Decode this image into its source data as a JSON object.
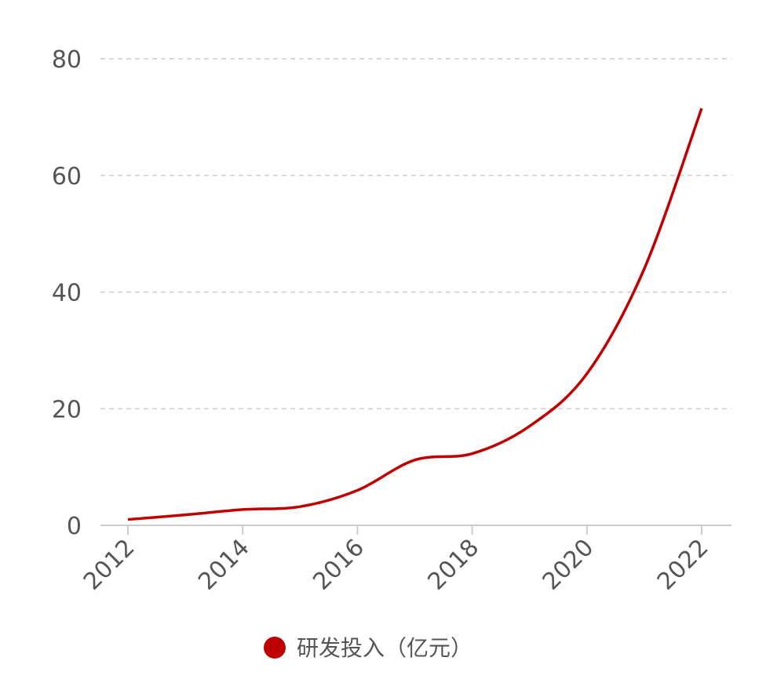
{
  "chart_data": {
    "type": "line",
    "x": [
      2012,
      2013,
      2014,
      2015,
      2016,
      2017,
      2018,
      2019,
      2020,
      2021,
      2022
    ],
    "series": [
      {
        "name": "研发投入（亿元）",
        "color": "#c00000",
        "values": [
          1.0,
          1.8,
          2.7,
          3.2,
          6.0,
          11.2,
          12.3,
          17.0,
          26.0,
          44.0,
          71.5
        ]
      }
    ],
    "x_ticks": [
      "2012",
      "2014",
      "2016",
      "2018",
      "2020",
      "2022"
    ],
    "y_ticks": [
      "0",
      "20",
      "40",
      "60",
      "80"
    ],
    "ylim": [
      0,
      80
    ],
    "xlim": [
      2012,
      2022
    ],
    "grid": "horizontal-dashed",
    "legend_position": "bottom-center",
    "title": "",
    "xlabel": "",
    "ylabel": ""
  }
}
